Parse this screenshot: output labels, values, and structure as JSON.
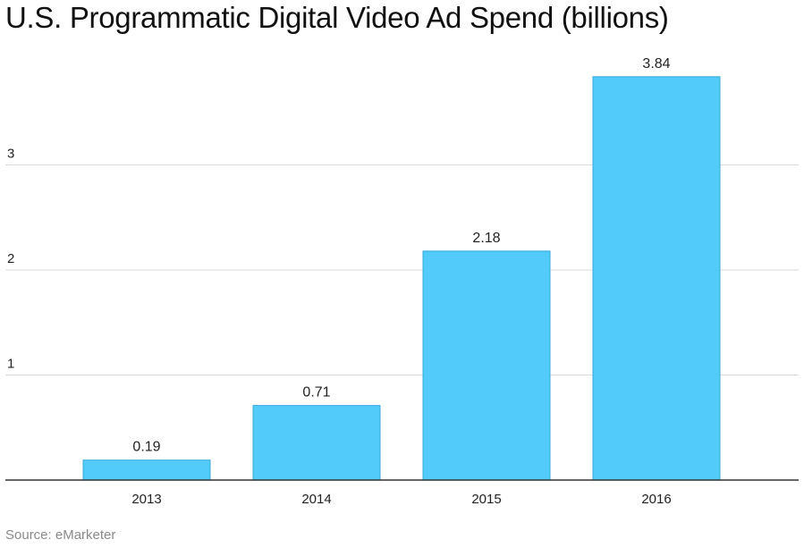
{
  "colors": {
    "bar_fill": "#52cbfb",
    "bar_stroke": "#3aa9db",
    "gridline": "#d9d9d9",
    "baseline": "#333333"
  },
  "source": "Source: eMarketer",
  "chart_data": {
    "type": "bar",
    "title": "U.S. Programmatic Digital Video Ad Spend (billions)",
    "categories": [
      "2013",
      "2014",
      "2015",
      "2016"
    ],
    "values": [
      0.19,
      0.71,
      2.18,
      3.84
    ],
    "data_labels": [
      "0.19",
      "0.71",
      "2.18",
      "3.84"
    ],
    "y_ticks": [
      1,
      2,
      3
    ],
    "y_tick_labels": [
      "1",
      "2",
      "3"
    ],
    "ylim": [
      0,
      4
    ],
    "xlabel": "",
    "ylabel": "",
    "grid": true,
    "legend": "none"
  }
}
